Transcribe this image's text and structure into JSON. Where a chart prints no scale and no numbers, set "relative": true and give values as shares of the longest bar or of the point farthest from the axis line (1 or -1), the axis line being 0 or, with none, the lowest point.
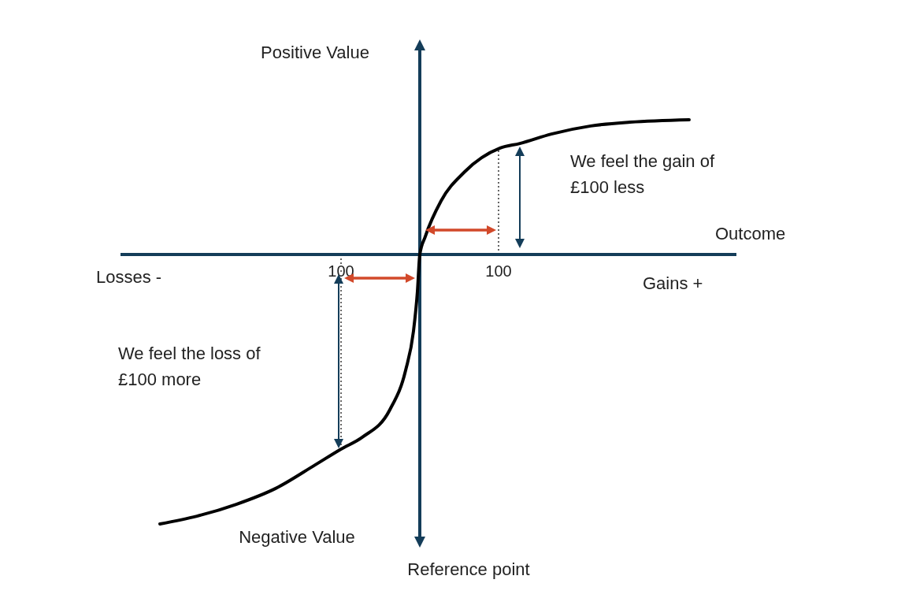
{
  "chart_data": {
    "type": "line",
    "relative": true,
    "xlim": [
      -380,
      402
    ],
    "xticks": [
      {
        "value": -100,
        "label": "100"
      },
      100
    ],
    "tick_labels": "x",
    "grid": false,
    "legend": false,
    "marker": "none",
    "line_style": "solid",
    "series": [
      {
        "color": "#000000",
        "x": [
          -330,
          -283,
          -233,
          -183,
          -133,
          -100,
          -73,
          -38,
          -18,
          -8,
          -3,
          0,
          7,
          27,
          57,
          102,
          127,
          167,
          217,
          267,
          342
        ],
        "values": [
          -1.0,
          -0.971,
          -0.927,
          -0.868,
          -0.781,
          -0.722,
          -0.678,
          -0.576,
          -0.43,
          -0.284,
          -0.137,
          0,
          0.067,
          0.199,
          0.307,
          0.395,
          0.412,
          0.447,
          0.477,
          0.491,
          0.5
        ]
      }
    ],
    "ref_lines": [
      {
        "axis": "x",
        "value": -100,
        "line_style": "dotted",
        "color": "#333333"
      },
      {
        "axis": "x",
        "value": 100,
        "line_style": "dotted",
        "color": "#333333"
      }
    ],
    "annotations": [
      "Positive Value",
      "Negative Value",
      "Losses -",
      "Gains +",
      "Outcome",
      "Reference point",
      "We feel the gain of £100 less",
      "We feel the loss of £100 more"
    ]
  }
}
